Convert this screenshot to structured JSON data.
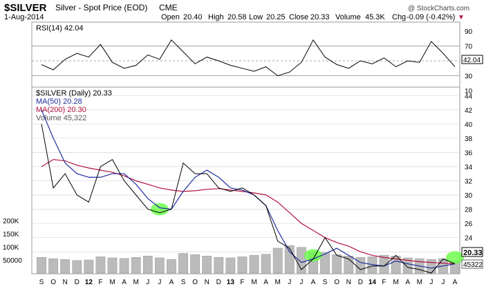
{
  "header": {
    "ticker": "$SILVER",
    "name": "Silver - Spot Price (EOD)",
    "exchange": "CME",
    "watermark": "@ StockCharts.com",
    "date": "1-Aug-2014",
    "open_label": "Open",
    "open": "20.40",
    "high_label": "High",
    "high": "20.58",
    "low_label": "Low",
    "low": "20.25",
    "close_label": "Close",
    "close": "20.33",
    "volume_label": "Volume",
    "volume": "45.3K",
    "chg_label": "Chg",
    "chg": "-0.09 (-0.42%)",
    "chg_marker": "▼"
  },
  "rsi_panel": {
    "legend": "RSI(14) 42.04",
    "ticks": [
      "90",
      "70",
      "50",
      "30",
      "10"
    ],
    "last_value_tag": "42.04"
  },
  "price_panel": {
    "legend": [
      {
        "text": "$SILVER (Daily) 20.33",
        "color": "#000000"
      },
      {
        "text": "MA(50) 20.28",
        "color": "#1f2d9e"
      },
      {
        "text": "MA(200) 20.30",
        "color": "#b3123c"
      },
      {
        "text": "Volume 45,322",
        "color": "#555555"
      }
    ],
    "price_ticks": [
      "44",
      "42",
      "40",
      "38",
      "36",
      "34",
      "32",
      "30",
      "28",
      "26",
      "24",
      "22"
    ],
    "volume_ticks": [
      "200K",
      "150K",
      "100K",
      "50000"
    ],
    "last_price_tag": "20.33",
    "last_volume_tag": "45322"
  },
  "x_axis": {
    "labels": [
      "S",
      "O",
      "N",
      "D",
      "12",
      "F",
      "M",
      "A",
      "M",
      "J",
      "J",
      "A",
      "S",
      "O",
      "N",
      "D",
      "13",
      "F",
      "M",
      "A",
      "M",
      "J",
      "J",
      "A",
      "S",
      "O",
      "N",
      "D",
      "14",
      "F",
      "M",
      "A",
      "M",
      "J",
      "J",
      "A"
    ]
  },
  "colors": {
    "price": "#000000",
    "ma50": "#1f2d9e",
    "ma200": "#b3123c",
    "volume": "#999999",
    "highlight": "#66ff44",
    "rsi_fill": "#4a7d4a"
  },
  "chart_data": [
    {
      "type": "line",
      "name": "rsi",
      "ylim": [
        0,
        100
      ],
      "reference_lines": [
        70,
        50,
        30
      ],
      "x": [
        0,
        1,
        2,
        3,
        4,
        5,
        6,
        7,
        8,
        9,
        10,
        11,
        12,
        13,
        14,
        15,
        16,
        17,
        18,
        19,
        20,
        21,
        22,
        23,
        24,
        25,
        26,
        27,
        28,
        29,
        30,
        31,
        32,
        33,
        34,
        35
      ],
      "x_labels": [
        "S",
        "O",
        "N",
        "D",
        "12",
        "F",
        "M",
        "A",
        "M",
        "J",
        "J",
        "A",
        "S",
        "O",
        "N",
        "D",
        "13",
        "F",
        "M",
        "A",
        "M",
        "J",
        "J",
        "A",
        "S",
        "O",
        "N",
        "D",
        "14",
        "F",
        "M",
        "A",
        "M",
        "J",
        "J",
        "A"
      ],
      "series": [
        {
          "values": [
            45,
            38,
            52,
            60,
            55,
            72,
            48,
            40,
            44,
            58,
            52,
            78,
            62,
            46,
            55,
            50,
            44,
            40,
            36,
            42,
            30,
            35,
            48,
            78,
            55,
            45,
            40,
            50,
            46,
            54,
            42,
            50,
            48,
            76,
            60,
            42
          ]
        }
      ]
    },
    {
      "type": "line",
      "name": "price",
      "ylim": [
        19,
        45
      ],
      "x": [
        0,
        1,
        2,
        3,
        4,
        5,
        6,
        7,
        8,
        9,
        10,
        11,
        12,
        13,
        14,
        15,
        16,
        17,
        18,
        19,
        20,
        21,
        22,
        23,
        24,
        25,
        26,
        27,
        28,
        29,
        30,
        31,
        32,
        33,
        34,
        35
      ],
      "x_labels": [
        "S",
        "O",
        "N",
        "D",
        "12",
        "F",
        "M",
        "A",
        "M",
        "J",
        "J",
        "A",
        "S",
        "O",
        "N",
        "D",
        "13",
        "F",
        "M",
        "A",
        "M",
        "J",
        "J",
        "A",
        "S",
        "O",
        "N",
        "D",
        "14",
        "F",
        "M",
        "A",
        "M",
        "J",
        "J",
        "A"
      ],
      "series": [
        {
          "name": "$SILVER (Daily)",
          "values": [
            40,
            31,
            33,
            30,
            29,
            34,
            35,
            32,
            30,
            28,
            27.5,
            28,
            34.5,
            33,
            33,
            31,
            30.5,
            31,
            30,
            28.5,
            23.5,
            22.5,
            19.5,
            21,
            24,
            21.5,
            21,
            19.5,
            20,
            20,
            21.5,
            19.8,
            19.5,
            19,
            21,
            20.3
          ]
        },
        {
          "name": "MA(50)",
          "values": [
            42,
            38,
            34.5,
            33,
            32.5,
            32.5,
            33,
            33,
            31.5,
            29.5,
            28.2,
            28,
            30.5,
            32.5,
            33.5,
            32.5,
            31,
            30.7,
            30,
            28.5,
            25,
            22,
            20.5,
            21,
            21.7,
            22.5,
            21.5,
            20.5,
            20.2,
            20,
            20.7,
            20.3,
            20,
            19.7,
            20,
            20.3
          ]
        },
        {
          "name": "MA(200)",
          "values": [
            34,
            35,
            34.8,
            34.2,
            33.8,
            33.5,
            33.2,
            32.7,
            32,
            31.5,
            31,
            30.7,
            30.5,
            30.6,
            30.8,
            30.9,
            30.7,
            30.5,
            30.3,
            30,
            29,
            27.5,
            26,
            25,
            24,
            23.3,
            22.8,
            22,
            21.5,
            21.2,
            21,
            20.8,
            20.6,
            20.5,
            20.4,
            20.3
          ]
        }
      ]
    },
    {
      "type": "bar",
      "name": "volume",
      "ylim": [
        0,
        250000
      ],
      "x": [
        0,
        1,
        2,
        3,
        4,
        5,
        6,
        7,
        8,
        9,
        10,
        11,
        12,
        13,
        14,
        15,
        16,
        17,
        18,
        19,
        20,
        21,
        22,
        23,
        24,
        25,
        26,
        27,
        28,
        29,
        30,
        31,
        32,
        33,
        34,
        35
      ],
      "series": [
        {
          "name": "Volume",
          "values": [
            60000,
            55000,
            52000,
            48000,
            50000,
            62000,
            58000,
            56000,
            60000,
            65000,
            58000,
            52000,
            75000,
            70000,
            65000,
            60000,
            58000,
            62000,
            68000,
            72000,
            95000,
            105000,
            98000,
            80000,
            78000,
            70000,
            65000,
            60000,
            62000,
            68000,
            65000,
            58000,
            55000,
            52000,
            55000,
            45322
          ]
        }
      ]
    }
  ]
}
